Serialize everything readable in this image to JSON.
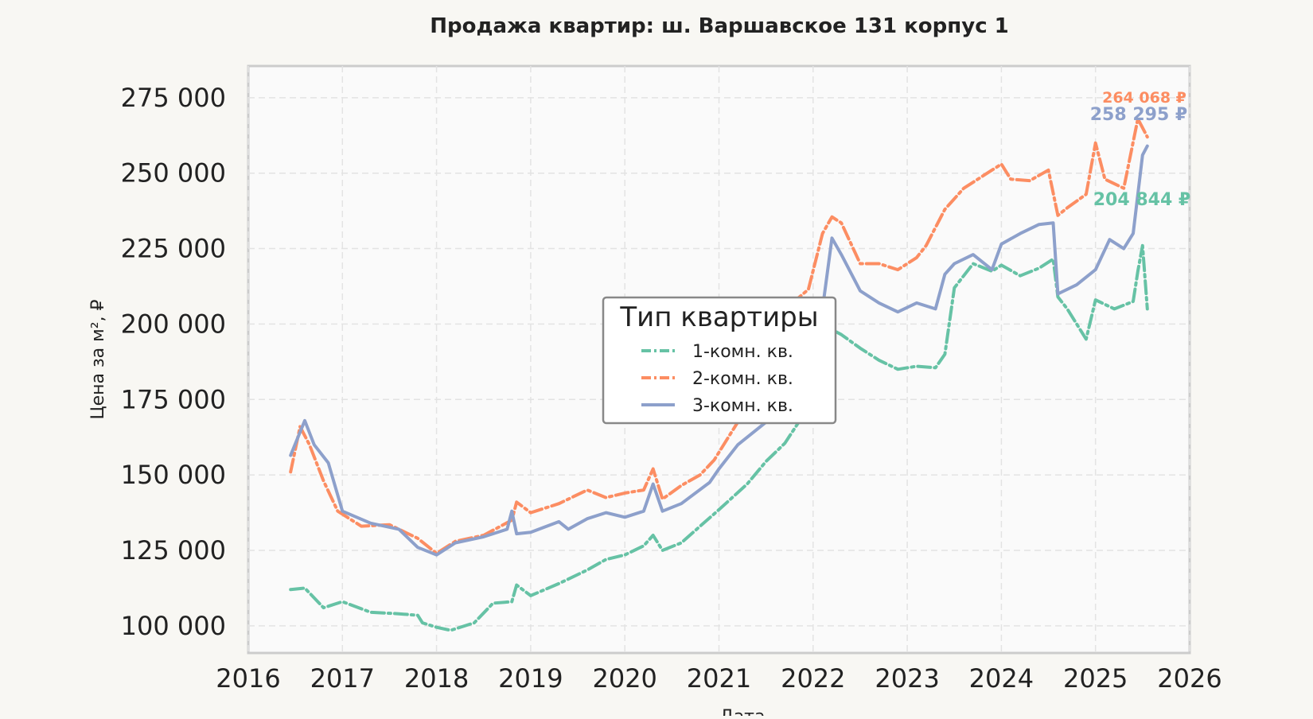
{
  "chart_data": {
    "type": "line",
    "title": "Продажа квартир: ш. Варшавское 131 корпус 1",
    "xlabel": "Дата",
    "ylabel": "Цена за м², ₽",
    "xlim": [
      2016,
      2026
    ],
    "ylim": [
      91000,
      285500
    ],
    "x_ticks": [
      "2016",
      "2017",
      "2018",
      "2019",
      "2020",
      "2021",
      "2022",
      "2023",
      "2024",
      "2025",
      "2026"
    ],
    "y_ticks": [
      {
        "value": 100000,
        "label": "100 000"
      },
      {
        "value": 125000,
        "label": "125 000"
      },
      {
        "value": 150000,
        "label": "150 000"
      },
      {
        "value": 175000,
        "label": "175 000"
      },
      {
        "value": 200000,
        "label": "200 000"
      },
      {
        "value": 225000,
        "label": "225 000"
      },
      {
        "value": 250000,
        "label": "250 000"
      },
      {
        "value": 275000,
        "label": "275 000"
      }
    ],
    "grid": true,
    "legend": {
      "title": "Тип квартиры",
      "placement": "center"
    },
    "series": [
      {
        "name": "1-комн. кв.",
        "color": "#66c2a5",
        "dash": "dashdot",
        "end_label": "204 844 ₽",
        "x": [
          2016.45,
          2016.6,
          2016.8,
          2017.0,
          2017.3,
          2017.6,
          2017.8,
          2017.85,
          2018.0,
          2018.15,
          2018.4,
          2018.6,
          2018.8,
          2018.85,
          2019.0,
          2019.3,
          2019.6,
          2019.8,
          2020.0,
          2020.2,
          2020.3,
          2020.4,
          2020.6,
          2020.8,
          2021.0,
          2021.3,
          2021.5,
          2021.7,
          2021.9,
          2022.0,
          2022.15,
          2022.3,
          2022.5,
          2022.7,
          2022.9,
          2023.1,
          2023.3,
          2023.4,
          2023.5,
          2023.7,
          2023.9,
          2024.0,
          2024.2,
          2024.4,
          2024.55,
          2024.6,
          2024.7,
          2024.9,
          2025.0,
          2025.2,
          2025.4,
          2025.45,
          2025.5,
          2025.55
        ],
        "y": [
          112000,
          112500,
          106000,
          108000,
          104500,
          104000,
          103500,
          101000,
          99500,
          98500,
          101000,
          107500,
          108000,
          113500,
          110000,
          114000,
          118500,
          122000,
          123500,
          126500,
          130000,
          125000,
          127500,
          133000,
          138500,
          147000,
          154500,
          160500,
          170000,
          188000,
          199000,
          196500,
          192000,
          188000,
          185000,
          186000,
          185500,
          190000,
          212000,
          220000,
          217500,
          219500,
          216000,
          218500,
          221500,
          209000,
          205000,
          195000,
          208000,
          205000,
          207500,
          217500,
          226000,
          205000
        ]
      },
      {
        "name": "2-комн. кв.",
        "color": "#fc8d62",
        "dash": "dashdot",
        "end_label": "264 068 ₽",
        "x": [
          2016.45,
          2016.55,
          2016.65,
          2016.8,
          2016.95,
          2017.2,
          2017.5,
          2017.8,
          2018.0,
          2018.2,
          2018.5,
          2018.8,
          2018.85,
          2019.0,
          2019.3,
          2019.6,
          2019.8,
          2020.0,
          2020.2,
          2020.3,
          2020.4,
          2020.6,
          2020.8,
          2020.95,
          2021.1,
          2021.3,
          2021.6,
          2021.8,
          2021.95,
          2022.1,
          2022.2,
          2022.3,
          2022.5,
          2022.7,
          2022.9,
          2023.1,
          2023.2,
          2023.4,
          2023.6,
          2023.8,
          2024.0,
          2024.1,
          2024.3,
          2024.5,
          2024.6,
          2024.7,
          2024.9,
          2025.0,
          2025.1,
          2025.3,
          2025.45,
          2025.55
        ],
        "y": [
          151000,
          166000,
          160000,
          148000,
          138000,
          133000,
          133500,
          129000,
          124000,
          128000,
          130000,
          135000,
          141000,
          137500,
          140500,
          145000,
          142500,
          144000,
          145000,
          152000,
          142000,
          146500,
          150000,
          155000,
          162500,
          172500,
          190000,
          207500,
          211500,
          230000,
          235500,
          233500,
          220000,
          220000,
          218000,
          222000,
          226000,
          238000,
          245000,
          249000,
          253000,
          248000,
          247500,
          251000,
          236000,
          238500,
          243000,
          260000,
          248000,
          245000,
          268000,
          262000
        ]
      },
      {
        "name": "3-комн. кв.",
        "color": "#8da0cb",
        "dash": "solid",
        "end_label": "258 295 ₽",
        "x": [
          2016.45,
          2016.6,
          2016.7,
          2016.85,
          2017.0,
          2017.3,
          2017.6,
          2017.8,
          2018.0,
          2018.2,
          2018.5,
          2018.75,
          2018.8,
          2018.85,
          2019.0,
          2019.3,
          2019.4,
          2019.6,
          2019.8,
          2020.0,
          2020.2,
          2020.3,
          2020.4,
          2020.6,
          2020.9,
          2021.0,
          2021.2,
          2021.5,
          2021.7,
          2021.9,
          2022.0,
          2022.1,
          2022.2,
          2022.3,
          2022.5,
          2022.7,
          2022.9,
          2023.1,
          2023.3,
          2023.4,
          2023.5,
          2023.7,
          2023.9,
          2024.0,
          2024.2,
          2024.4,
          2024.55,
          2024.6,
          2024.8,
          2025.0,
          2025.15,
          2025.3,
          2025.4,
          2025.5,
          2025.55
        ],
        "y": [
          156500,
          168000,
          160000,
          154000,
          138000,
          134000,
          132000,
          126000,
          123500,
          127500,
          129500,
          132000,
          138000,
          130500,
          131000,
          134500,
          132000,
          135500,
          137500,
          136000,
          138000,
          147000,
          138000,
          140500,
          147500,
          152000,
          160000,
          167500,
          182500,
          192000,
          197500,
          205000,
          228500,
          223000,
          211000,
          207000,
          204000,
          207000,
          205000,
          216500,
          220000,
          223000,
          218000,
          226500,
          230000,
          233000,
          233500,
          210000,
          213000,
          218000,
          228000,
          225000,
          230000,
          256000,
          259000
        ]
      }
    ]
  }
}
